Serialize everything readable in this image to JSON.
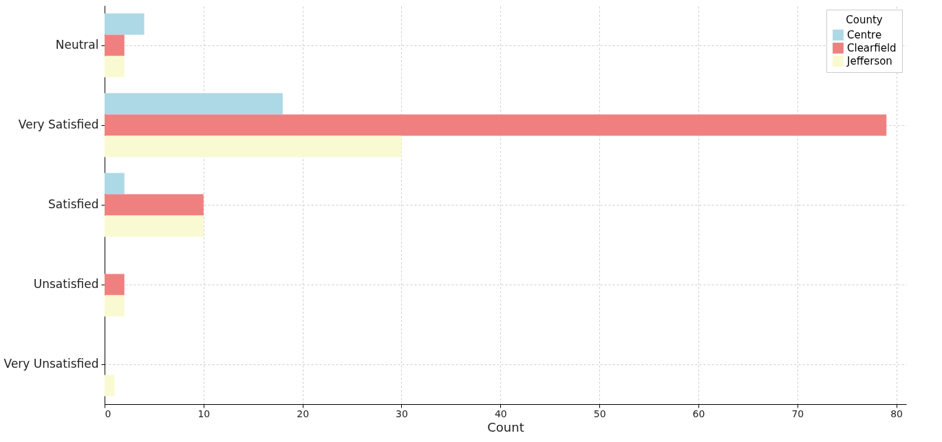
{
  "chart_data": {
    "type": "bar",
    "orientation": "horizontal",
    "xlabel": "Count",
    "legend_title": "County",
    "legend": "top right",
    "grid": true,
    "categories": [
      "Neutral",
      "Very Satisfied",
      "Satisfied",
      "Unsatisfied",
      "Very Unsatisfied"
    ],
    "xlim": [
      0,
      81
    ],
    "xticks": [
      0,
      10,
      20,
      30,
      40,
      50,
      60,
      70,
      80
    ],
    "series": [
      {
        "name": "Centre",
        "color": "#add8e6",
        "values": [
          4,
          18,
          2,
          0,
          0
        ]
      },
      {
        "name": "Clearfield",
        "color": "#f08080",
        "values": [
          2,
          79,
          10,
          2,
          0
        ]
      },
      {
        "name": "Jefferson",
        "color": "#fafad2",
        "values": [
          2,
          30,
          10,
          2,
          1
        ]
      }
    ]
  }
}
